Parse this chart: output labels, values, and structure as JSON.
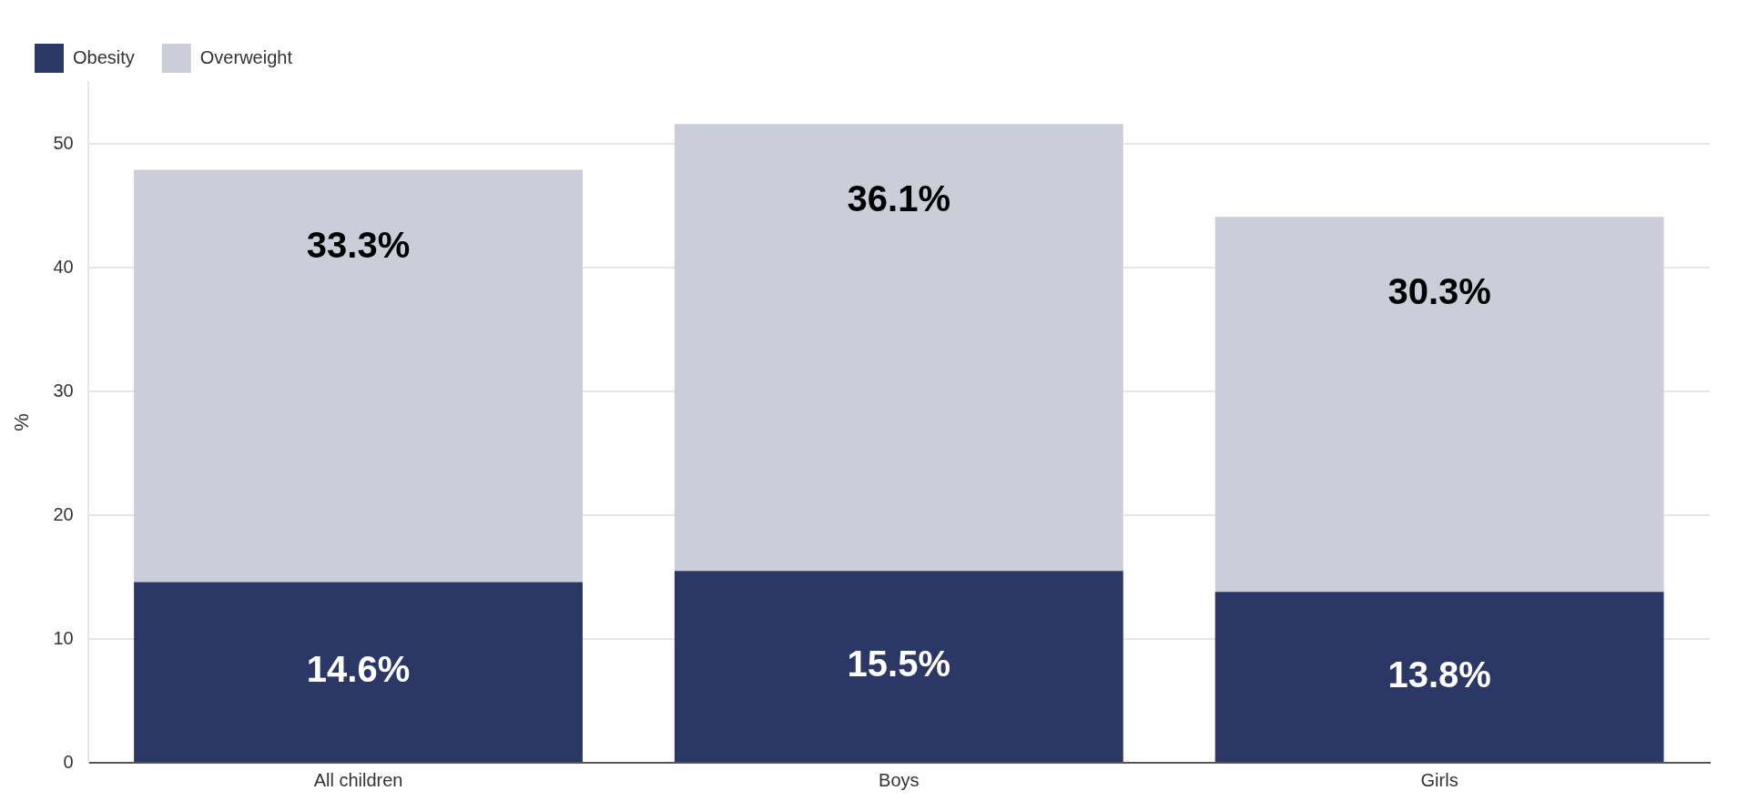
{
  "chart_data": {
    "type": "bar",
    "stacked": true,
    "ylabel": "%",
    "categories": [
      "All children",
      "Boys",
      "Girls"
    ],
    "series": [
      {
        "name": "Obesity",
        "color": "#2b3764",
        "values": [
          14.6,
          15.5,
          13.8
        ],
        "value_labels": [
          "14.6%",
          "15.5%",
          "13.8%"
        ]
      },
      {
        "name": "Overweight",
        "color": "#cbcdd9",
        "values": [
          33.3,
          36.1,
          30.3
        ],
        "value_labels": [
          "33.3%",
          "36.1%",
          "30.3%"
        ]
      }
    ],
    "ylim": [
      0,
      55
    ],
    "yticks": [
      0,
      10,
      20,
      30,
      40,
      50
    ],
    "grid": "y",
    "legend": "top left"
  }
}
